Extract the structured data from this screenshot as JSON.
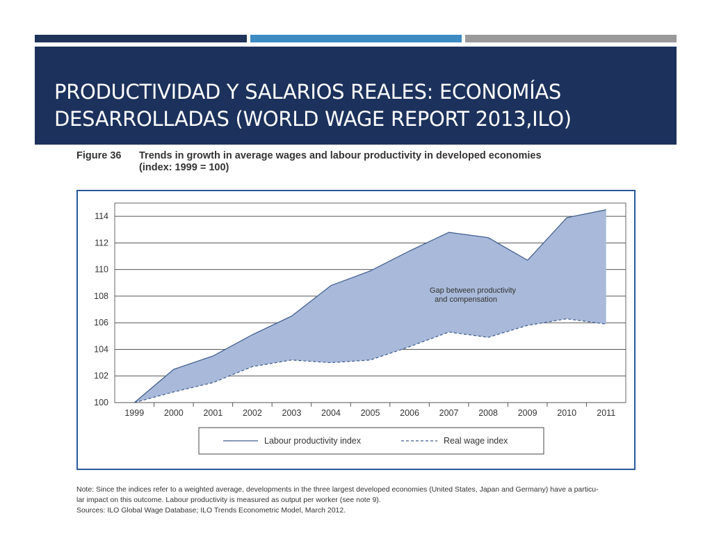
{
  "slide": {
    "title_line1": "PRODUCTIVIDAD Y SALARIOS REALES: ECONOMÍAS",
    "title_line2": "DESARROLLADAS (WORLD WAGE REPORT 2013,ILO)"
  },
  "figure": {
    "number": "Figure 36",
    "caption_line1": "Trends in growth in average wages and labour productivity in developed economies",
    "caption_line2": "(index: 1999 = 100)"
  },
  "chart_data": {
    "type": "area",
    "title": "Trends in growth in average wages and labour productivity in developed economies (index: 1999 = 100)",
    "categories": [
      "1999",
      "2000",
      "2001",
      "2002",
      "2003",
      "2004",
      "2005",
      "2006",
      "2007",
      "2008",
      "2009",
      "2010",
      "2011"
    ],
    "series": [
      {
        "name": "Labour productivity index",
        "style": "solid",
        "values": [
          100,
          102.5,
          103.5,
          105.1,
          106.5,
          108.8,
          109.9,
          111.4,
          112.8,
          112.4,
          110.7,
          113.9,
          114.5
        ]
      },
      {
        "name": "Real wage index",
        "style": "dashed",
        "values": [
          100,
          100.8,
          101.5,
          102.7,
          103.2,
          103.0,
          103.2,
          104.2,
          105.3,
          104.9,
          105.8,
          106.3,
          105.9
        ]
      }
    ],
    "yticks": [
      "100",
      "102",
      "104",
      "106",
      "108",
      "110",
      "112",
      "114"
    ],
    "ylim": [
      100,
      115
    ],
    "annotation_line1": "Gap between productivity",
    "annotation_line2": "and compensation",
    "fill_color": "#a8b9d9",
    "line_color": "#3b5a8a"
  },
  "notes": {
    "line1": "Note: Since the indices refer to a weighted average, developments in the three largest developed economies (United States, Japan and Germany) have a particu-",
    "line2": "lar impact on this outcome. Labour productivity is measured as output per worker (see note 9).",
    "line3": "Sources: ILO Global Wage Database; ILO Trends Econometric Model, March 2012."
  }
}
